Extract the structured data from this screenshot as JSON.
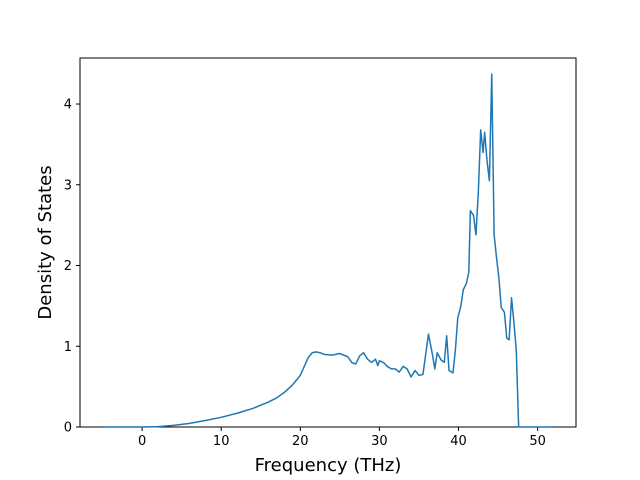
{
  "chart_data": {
    "type": "line",
    "xlabel": "Frequency (THz)",
    "ylabel": "Density of States",
    "xlim": [
      -7.85,
      54.85
    ],
    "xticks": [
      0,
      10,
      20,
      30,
      40,
      50
    ],
    "ylim": [
      0,
      4.57
    ],
    "yticks": [
      0,
      1,
      2,
      3,
      4
    ],
    "series": [
      {
        "color": "#1f77b4",
        "x": [
          -5,
          0,
          2,
          4,
          6,
          8,
          10,
          12,
          14,
          16,
          17,
          18,
          19,
          20,
          20.5,
          21,
          21.5,
          22,
          22.5,
          23,
          24,
          25,
          26,
          26.5,
          27,
          27.5,
          28,
          28.5,
          29,
          29.5,
          29.8,
          30,
          30.5,
          31,
          31.5,
          32,
          32.5,
          33,
          33.5,
          34,
          34.5,
          35,
          35.5,
          36.2,
          36.7,
          37,
          37.3,
          37.8,
          38.2,
          38.5,
          38.8,
          39.3,
          39.6,
          39.9,
          40.3,
          40.6,
          41,
          41.3,
          41.5,
          41.9,
          42.2,
          42.5,
          42.8,
          43.1,
          43.3,
          43.6,
          43.9,
          44.2,
          44.5,
          44.8,
          45.1,
          45.4,
          45.8,
          46.1,
          46.4,
          46.7,
          47,
          47.3,
          47.6,
          50,
          52
        ],
        "values": [
          0,
          0,
          0.005,
          0.02,
          0.045,
          0.08,
          0.12,
          0.17,
          0.23,
          0.31,
          0.36,
          0.43,
          0.52,
          0.64,
          0.75,
          0.86,
          0.92,
          0.93,
          0.92,
          0.9,
          0.89,
          0.91,
          0.87,
          0.8,
          0.78,
          0.88,
          0.92,
          0.84,
          0.8,
          0.84,
          0.76,
          0.82,
          0.8,
          0.75,
          0.72,
          0.72,
          0.68,
          0.75,
          0.72,
          0.62,
          0.7,
          0.64,
          0.65,
          1.15,
          0.9,
          0.72,
          0.92,
          0.83,
          0.8,
          1.13,
          0.7,
          0.67,
          0.95,
          1.35,
          1.5,
          1.7,
          1.78,
          1.92,
          2.68,
          2.62,
          2.38,
          2.9,
          3.68,
          3.4,
          3.65,
          3.3,
          3.05,
          4.37,
          2.38,
          2.1,
          1.85,
          1.48,
          1.42,
          1.1,
          1.08,
          1.6,
          1.3,
          0.95,
          0,
          0,
          0
        ]
      }
    ]
  }
}
